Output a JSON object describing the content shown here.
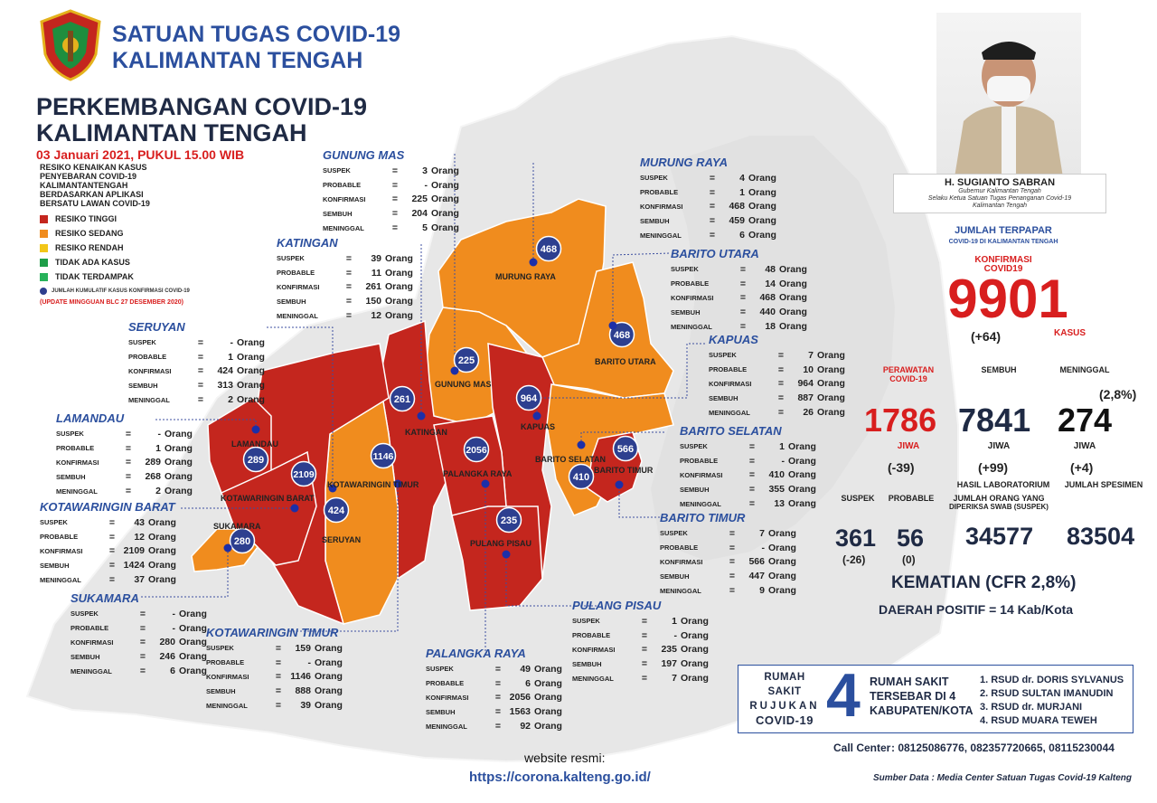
{
  "header": {
    "org_line1": "SATUAN TUGAS COVID-19",
    "org_line2": "KALIMANTAN TENGAH"
  },
  "title": {
    "line1": "PERKEMBANGAN COVID-19",
    "line2": "KALIMANTAN TENGAH"
  },
  "date": "03 Januari 2021, PUKUL 15.00 WIB",
  "risk_description": [
    "RESIKO KENAIKAN KASUS",
    "PENYEBARAN COVID-19",
    "KALIMANTANTENGAH",
    "BERDASARKAN APLIKASI",
    "BERSATU LAWAN COVID-19"
  ],
  "legend": [
    {
      "label": "RESIKO TINGGI",
      "color": "#c4261e"
    },
    {
      "label": "RESIKO SEDANG",
      "color": "#f08c1e"
    },
    {
      "label": "RESIKO RENDAH",
      "color": "#f2c618"
    },
    {
      "label": "TIDAK ADA KASUS",
      "color": "#1e9e48"
    },
    {
      "label": "TIDAK TERDAMPAK",
      "color": "#27b25a"
    }
  ],
  "dot_legend": "JUMLAH KUMULATIF KASUS KONFIRMASI COVID-19",
  "update_note": "(UPDATE MINGGUAN BLC 27 DESEMBER 2020)",
  "row_labels": {
    "suspek": "SUSPEK",
    "probable": "PROBABLE",
    "konfirmasi": "KONFIRMASI",
    "sembuh": "SEMBUH",
    "meninggal": "MENINGGAL"
  },
  "eq": "=",
  "unit": "Orang",
  "regions": [
    {
      "name": "GUNUNG MAS",
      "map_label": "GUNUNG MAS",
      "risk": "sedang",
      "marker": "225",
      "suspek": "3",
      "probable": "-",
      "konfirmasi": "225",
      "sembuh": "204",
      "meninggal": "5"
    },
    {
      "name": "MURUNG RAYA",
      "map_label": "MURUNG RAYA",
      "risk": "sedang",
      "marker": "468",
      "suspek": "4",
      "probable": "1",
      "konfirmasi": "468",
      "sembuh": "459",
      "meninggal": "6"
    },
    {
      "name": "KATINGAN",
      "map_label": "KATINGAN",
      "risk": "tinggi",
      "marker": "261",
      "suspek": "39",
      "probable": "11",
      "konfirmasi": "261",
      "sembuh": "150",
      "meninggal": "12"
    },
    {
      "name": "BARITO UTARA",
      "map_label": "BARITO UTARA",
      "risk": "sedang",
      "marker": "468",
      "suspek": "48",
      "probable": "14",
      "konfirmasi": "468",
      "sembuh": "440",
      "meninggal": "18"
    },
    {
      "name": "SERUYAN",
      "map_label": "SERUYAN",
      "risk": "tinggi",
      "marker": "424",
      "suspek": "-",
      "probable": "1",
      "konfirmasi": "424",
      "sembuh": "313",
      "meninggal": "2"
    },
    {
      "name": "KAPUAS",
      "map_label": "KAPUAS",
      "risk": "tinggi",
      "marker": "964",
      "suspek": "7",
      "probable": "10",
      "konfirmasi": "964",
      "sembuh": "887",
      "meninggal": "26"
    },
    {
      "name": "LAMANDAU",
      "map_label": "LAMANDAU",
      "risk": "tinggi",
      "marker": "289",
      "suspek": "-",
      "probable": "1",
      "konfirmasi": "289",
      "sembuh": "268",
      "meninggal": "2"
    },
    {
      "name": "BARITO SELATAN",
      "map_label": "BARITO SELATAN",
      "risk": "sedang",
      "marker": "410",
      "suspek": "1",
      "probable": "-",
      "konfirmasi": "410",
      "sembuh": "355",
      "meninggal": "13"
    },
    {
      "name": "KOTAWARINGIN BARAT",
      "map_label": "KOTAWARINGIN BARAT",
      "risk": "tinggi",
      "marker": "2109",
      "suspek": "43",
      "probable": "12",
      "konfirmasi": "2109",
      "sembuh": "1424",
      "meninggal": "37"
    },
    {
      "name": "BARITO TIMUR",
      "map_label": "BARITO TIMUR",
      "risk": "tinggi",
      "marker": "566",
      "suspek": "7",
      "probable": "-",
      "konfirmasi": "566",
      "sembuh": "447",
      "meninggal": "9"
    },
    {
      "name": "SUKAMARA",
      "map_label": "SUKAMARA",
      "risk": "sedang",
      "marker": "280",
      "suspek": "-",
      "probable": "-",
      "konfirmasi": "280",
      "sembuh": "246",
      "meninggal": "6"
    },
    {
      "name": "PULANG PISAU",
      "map_label": "PULANG PISAU",
      "risk": "tinggi",
      "marker": "235",
      "suspek": "1",
      "probable": "-",
      "konfirmasi": "235",
      "sembuh": "197",
      "meninggal": "7"
    },
    {
      "name": "KOTAWARINGIN TIMUR",
      "map_label": "KOTAWARINGIN TIMUR",
      "risk": "sedang",
      "marker": "1146",
      "suspek": "159",
      "probable": "-",
      "konfirmasi": "1146",
      "sembuh": "888",
      "meninggal": "39"
    },
    {
      "name": "PALANGKA RAYA",
      "map_label": "PALANGKA RAYA",
      "risk": "tinggi",
      "marker": "2056",
      "suspek": "49",
      "probable": "6",
      "konfirmasi": "2056",
      "sembuh": "1563",
      "meninggal": "92"
    }
  ],
  "official": {
    "name": "H. SUGIANTO SABRAN",
    "role_lines": [
      "Gubernur Kalimantan Tengah",
      "Selaku Ketua Satuan Tugas Penanganan Covid-19",
      "Kalimantan Tengah"
    ]
  },
  "summary": {
    "jumlah_terpapar": "JUMLAH TERPAPAR",
    "jumlah_sub": "COVID-19 DI KALIMANTAN TENGAH",
    "konfirmasi_label1": "KONFIRMASI",
    "konfirmasi_label2": "COVID19",
    "konfirmasi_total": "9901",
    "konfirmasi_change": "(+64)",
    "kasus_label": "KASUS",
    "perawatan_label1": "PERAWATAN",
    "perawatan_label2": "COVID-19",
    "perawatan_value": "1786",
    "perawatan_change": "(-39)",
    "sembuh_label": "SEMBUH",
    "sembuh_value": "7841",
    "sembuh_change": "(+99)",
    "meninggal_label": "MENINGGAL",
    "meninggal_value": "274",
    "meninggal_change": "(+4)",
    "meninggal_pct": "(2,8%)",
    "jiwa": "JIWA",
    "suspek_label": "SUSPEK",
    "suspek_value": "361",
    "suspek_change": "(-26)",
    "probable_label": "PROBABLE",
    "probable_value": "56",
    "probable_change": "(0)",
    "lab_label": "HASIL LABORATORIUM",
    "lab_sub1": "JUMLAH ORANG YANG",
    "lab_sub2": "DIPERIKSA SWAB (SUSPEK)",
    "lab_value": "34577",
    "spesimen_label": "JUMLAH SPESIMEN",
    "spesimen_value": "83504",
    "kematian": "KEMATIAN (CFR 2,8%)",
    "daerah_positif": "DAERAH POSITIF = 14 Kab/Kota"
  },
  "hospitals": {
    "left": [
      "RUMAH SAKIT",
      "RUJUKAN",
      "COVID-19"
    ],
    "count": "4",
    "middle": [
      "RUMAH SAKIT",
      "TERSEBAR DI 4",
      "KABUPATEN/KOTA"
    ],
    "list": [
      "1. RSUD dr. DORIS SYLVANUS",
      "2. RSUD SULTAN IMANUDIN",
      "3. RSUD dr. MURJANI",
      "4. RSUD MUARA TEWEH"
    ]
  },
  "call_center": {
    "label": "Call Center",
    "numbers": ": 08125086776, 082357720665, 08115230044"
  },
  "source": "Sumber Data : Media Center Satuan Tugas Covid-19 Kalteng",
  "website": {
    "label": "website resmi:",
    "url": "https://corona.kalteng.go.id/"
  },
  "colors": {
    "tinggi": "#c4261e",
    "sedang": "#f08c1e",
    "marker": "#2d3f8f",
    "brand": "#2b4f9e",
    "alert": "#d81e1e"
  }
}
